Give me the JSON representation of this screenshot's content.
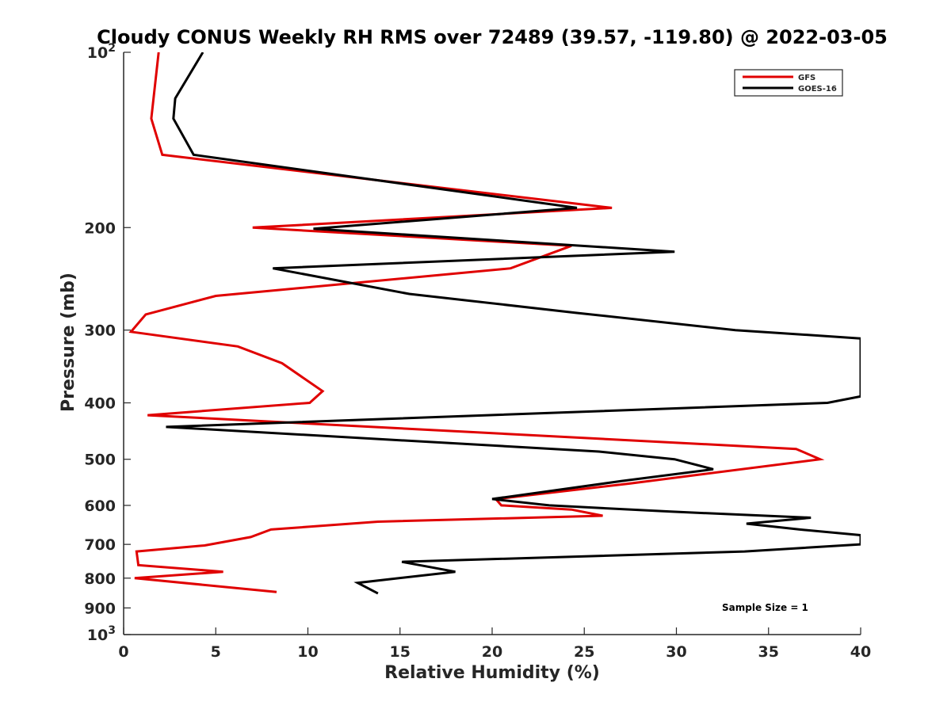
{
  "chart_data": {
    "type": "line",
    "title": "Cloudy CONUS Weekly RH RMS over 72489 (39.57, -119.80) @ 2022-03-05",
    "xlabel": "Relative Humidity (%)",
    "ylabel": "Pressure (mb)",
    "xlim": [
      0,
      40
    ],
    "ylim": [
      100,
      1000
    ],
    "y_scale": "log",
    "y_reversed": true,
    "x_ticks": [
      0,
      5,
      10,
      15,
      20,
      25,
      30,
      35,
      40
    ],
    "x_tick_labels": [
      "0",
      "5",
      "10",
      "15",
      "20",
      "25",
      "30",
      "35",
      "40"
    ],
    "y_ticks": [
      100,
      200,
      300,
      400,
      500,
      600,
      700,
      800,
      900,
      1000
    ],
    "y_tick_labels": [
      {
        "base": "10",
        "exp": "2"
      },
      {
        "base": "200",
        "exp": ""
      },
      {
        "base": "300",
        "exp": ""
      },
      {
        "base": "400",
        "exp": ""
      },
      {
        "base": "500",
        "exp": ""
      },
      {
        "base": "600",
        "exp": ""
      },
      {
        "base": "700",
        "exp": ""
      },
      {
        "base": "800",
        "exp": ""
      },
      {
        "base": "900",
        "exp": ""
      },
      {
        "base": "10",
        "exp": "3"
      }
    ],
    "grid": false,
    "legend_position": "top-right",
    "annotation": "Sample Size = 1",
    "series": [
      {
        "name": "GFS",
        "color": "#e00000",
        "x": [
          1.9,
          1.5,
          2.1,
          26.5,
          7.0,
          24.3,
          21.0,
          5.0,
          1.2,
          0.4,
          6.2,
          8.6,
          10.8,
          10.1,
          1.3,
          36.5,
          37.8,
          27.5,
          20.2,
          20.5,
          24.3,
          26.0,
          13.8,
          8.0,
          6.9,
          4.4,
          0.7,
          0.8,
          5.4,
          0.6,
          8.3
        ],
        "y": [
          100,
          130,
          150,
          185,
          200,
          215,
          235,
          262,
          282,
          302,
          320,
          342,
          382,
          400,
          420,
          480,
          500,
          550,
          585,
          600,
          610,
          625,
          640,
          660,
          680,
          703,
          720,
          760,
          780,
          800,
          845
        ]
      },
      {
        "name": "GOES-16",
        "color": "#000000",
        "x": [
          4.3,
          2.8,
          2.7,
          3.8,
          24.6,
          10.3,
          29.9,
          8.1,
          15.5,
          24.5,
          33.2,
          40.0,
          40.0,
          38.2,
          2.3,
          25.8,
          29.9,
          32.0,
          27.0,
          20.0,
          23.1,
          29.7,
          37.3,
          33.8,
          36.7,
          40.0,
          40.0,
          33.7,
          15.1,
          18.0,
          12.7,
          13.8
        ],
        "y": [
          100,
          120,
          130,
          150,
          185,
          201,
          220,
          235,
          260,
          280,
          300,
          310,
          390,
          400,
          440,
          485,
          500,
          520,
          545,
          585,
          600,
          615,
          630,
          645,
          660,
          675,
          700,
          720,
          750,
          780,
          815,
          850
        ]
      }
    ]
  }
}
